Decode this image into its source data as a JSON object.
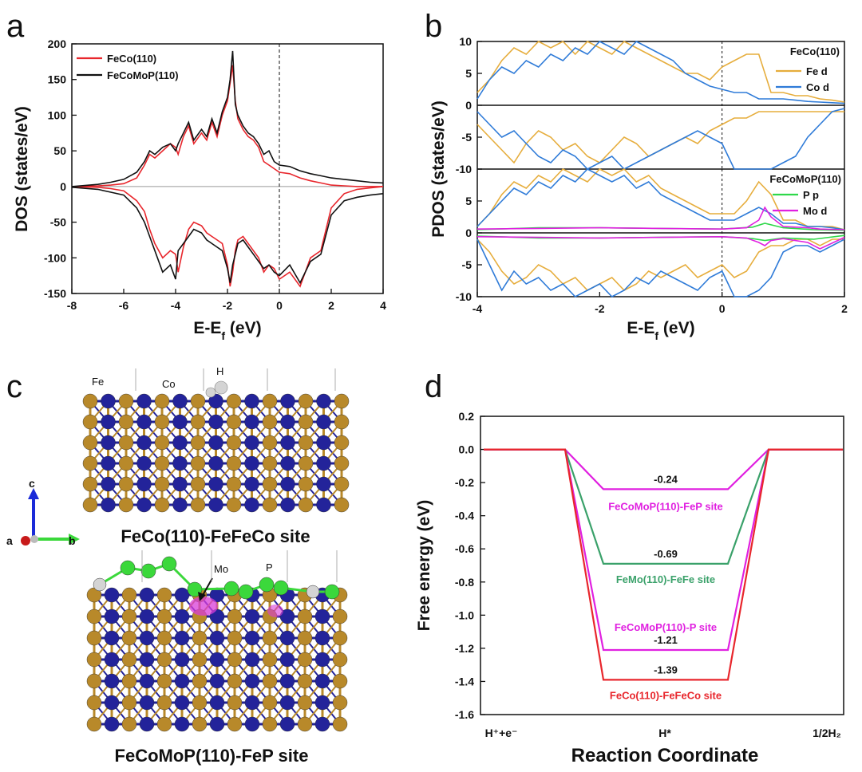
{
  "figure": {
    "panel_letters": [
      "a",
      "b",
      "c",
      "d"
    ]
  },
  "colors": {
    "red": "#e8262c",
    "black": "#111111",
    "fe_d": "#e6ad3c",
    "co_d": "#2f7bd8",
    "p_p": "#2fd84a",
    "mo_d": "#e020e0",
    "green_path": "#3aa16a",
    "fe_atom": "#b8892a",
    "co_atom": "#23239a",
    "p_atom": "#3bd83b",
    "h_atom": "#d4d4d4",
    "mo_atom": "#d83cd8"
  },
  "chart_data": [
    {
      "id": "a",
      "type": "line",
      "xlabel": "E-E",
      "xlabel_sub": "f",
      "xlabel_unit": " (eV)",
      "ylabel": "DOS (states/eV)",
      "xlim": [
        -8,
        4
      ],
      "ylim": [
        -150,
        200
      ],
      "xticks": [
        -8,
        -6,
        -4,
        -2,
        0,
        2,
        4
      ],
      "yticks": [
        -150,
        -100,
        -50,
        0,
        50,
        100,
        150,
        200
      ],
      "legend": [
        "FeCo(110)",
        "FeCoMoP(110)"
      ],
      "series": [
        {
          "name": "FeCo(110)",
          "x": [
            -8,
            -7,
            -6.5,
            -6,
            -5.5,
            -5.2,
            -5,
            -4.8,
            -4.5,
            -4.2,
            -4,
            -3.9,
            -3.7,
            -3.5,
            -3.3,
            -3,
            -2.8,
            -2.6,
            -2.4,
            -2.2,
            -2,
            -1.9,
            -1.8,
            -1.7,
            -1.6,
            -1.4,
            -1.2,
            -1,
            -0.8,
            -0.6,
            -0.4,
            -0.2,
            0,
            0.4,
            0.8,
            1.2,
            1.6,
            2,
            2.5,
            3,
            3.5,
            4
          ],
          "up": [
            0,
            1,
            2,
            4,
            12,
            30,
            45,
            40,
            50,
            60,
            55,
            45,
            70,
            85,
            60,
            75,
            65,
            90,
            70,
            100,
            120,
            145,
            170,
            120,
            95,
            80,
            70,
            65,
            55,
            35,
            30,
            25,
            20,
            18,
            12,
            8,
            5,
            2,
            1,
            0,
            0,
            0
          ],
          "dn": [
            0,
            -1,
            -3,
            -6,
            -20,
            -35,
            -60,
            -80,
            -100,
            -90,
            -95,
            -120,
            -85,
            -60,
            -50,
            -55,
            -65,
            -70,
            -75,
            -80,
            -110,
            -140,
            -120,
            -90,
            -75,
            -70,
            -80,
            -90,
            -100,
            -120,
            -110,
            -115,
            -130,
            -120,
            -140,
            -100,
            -90,
            -30,
            -10,
            -4,
            -2,
            0
          ]
        },
        {
          "name": "FeCoMoP(110)",
          "x": [
            -8,
            -7,
            -6.5,
            -6,
            -5.5,
            -5.2,
            -5,
            -4.8,
            -4.5,
            -4.2,
            -4,
            -3.9,
            -3.7,
            -3.5,
            -3.3,
            -3,
            -2.8,
            -2.6,
            -2.4,
            -2.2,
            -2,
            -1.9,
            -1.8,
            -1.7,
            -1.6,
            -1.4,
            -1.2,
            -1,
            -0.8,
            -0.6,
            -0.4,
            -0.2,
            0,
            0.4,
            0.8,
            1.2,
            1.6,
            2,
            2.5,
            3,
            3.5,
            4
          ],
          "up": [
            0,
            3,
            6,
            10,
            20,
            35,
            50,
            45,
            55,
            60,
            50,
            60,
            75,
            90,
            65,
            80,
            70,
            95,
            75,
            105,
            125,
            150,
            190,
            115,
            100,
            85,
            75,
            70,
            60,
            45,
            50,
            35,
            30,
            28,
            22,
            18,
            15,
            12,
            10,
            8,
            6,
            5
          ],
          "dn": [
            -1,
            -4,
            -8,
            -12,
            -30,
            -50,
            -70,
            -90,
            -120,
            -110,
            -130,
            -90,
            -80,
            -70,
            -60,
            -65,
            -75,
            -80,
            -85,
            -90,
            -115,
            -135,
            -110,
            -95,
            -80,
            -75,
            -85,
            -95,
            -105,
            -115,
            -110,
            -120,
            -125,
            -110,
            -135,
            -105,
            -95,
            -40,
            -20,
            -15,
            -12,
            -10
          ]
        }
      ]
    },
    {
      "id": "b",
      "type": "line",
      "xlabel": "E-E",
      "xlabel_sub": "f",
      "xlabel_unit": " (eV)",
      "ylabel": "PDOS (states/eV)",
      "xlim": [
        -4,
        2
      ],
      "xticks": [
        -4,
        -2,
        0,
        2
      ],
      "subplots": [
        {
          "label": "FeCo(110)",
          "ylim": [
            -10,
            10
          ],
          "yticks": [
            -10,
            -5,
            0,
            5,
            10
          ],
          "legend": [
            "Fe d",
            "Co d"
          ],
          "series": [
            {
              "name": "Fe d",
              "x": [
                -4,
                -3.8,
                -3.6,
                -3.4,
                -3.2,
                -3,
                -2.8,
                -2.6,
                -2.4,
                -2.2,
                -2,
                -1.8,
                -1.6,
                -1.4,
                -1.2,
                -1,
                -0.8,
                -0.6,
                -0.4,
                -0.2,
                0,
                0.2,
                0.4,
                0.6,
                0.8,
                1,
                1.2,
                1.4,
                1.6,
                1.8,
                2
              ],
              "up": [
                2,
                4,
                7,
                9,
                8,
                10,
                9,
                10,
                8,
                10,
                9,
                8,
                10,
                9,
                8,
                7,
                6,
                5,
                5,
                4,
                6,
                7,
                8,
                8,
                2,
                2,
                1.5,
                1.5,
                1,
                0.8,
                0.5
              ],
              "dn": [
                -3,
                -5,
                -7,
                -9,
                -6,
                -4,
                -5,
                -7,
                -6,
                -8,
                -9,
                -7,
                -5,
                -6,
                -8,
                -7,
                -6,
                -5,
                -6,
                -4,
                -3,
                -2,
                -2,
                -1,
                -1,
                -1,
                -1,
                -1,
                -1,
                -1,
                -1
              ]
            },
            {
              "name": "Co d",
              "x": [
                -4,
                -3.8,
                -3.6,
                -3.4,
                -3.2,
                -3,
                -2.8,
                -2.6,
                -2.4,
                -2.2,
                -2,
                -1.8,
                -1.6,
                -1.4,
                -1.2,
                -1,
                -0.8,
                -0.6,
                -0.4,
                -0.2,
                0,
                0.2,
                0.4,
                0.6,
                0.8,
                1,
                1.2,
                1.4,
                1.6,
                1.8,
                2
              ],
              "up": [
                1,
                4,
                6,
                5,
                7,
                6,
                8,
                7,
                9,
                8,
                10,
                9,
                8,
                10,
                9,
                8,
                7,
                5,
                4,
                3,
                2.5,
                2,
                2,
                1,
                1,
                1,
                0.8,
                0.6,
                0.5,
                0.4,
                0.3
              ],
              "dn": [
                -1,
                -3,
                -5,
                -4,
                -6,
                -8,
                -9,
                -7,
                -8,
                -10,
                -9,
                -8,
                -10,
                -9,
                -8,
                -7,
                -6,
                -5,
                -4,
                -5,
                -6,
                -10,
                -10,
                -10,
                -10,
                -9,
                -8,
                -5,
                -3,
                -1,
                -0.5
              ]
            }
          ]
        },
        {
          "label": "FeCoMoP(110)",
          "ylim": [
            -10,
            10
          ],
          "yticks": [
            -10,
            -5,
            0,
            5,
            10
          ],
          "legend": [
            "P p",
            "Mo d"
          ],
          "series": [
            {
              "name": "Fe d",
              "x": [
                -4,
                -3.8,
                -3.6,
                -3.4,
                -3.2,
                -3,
                -2.8,
                -2.6,
                -2.4,
                -2.2,
                -2,
                -1.8,
                -1.6,
                -1.4,
                -1.2,
                -1,
                -0.8,
                -0.6,
                -0.4,
                -0.2,
                0,
                0.2,
                0.4,
                0.6,
                0.8,
                1,
                1.2,
                1.4,
                1.6,
                1.8,
                2
              ],
              "up": [
                1,
                3,
                6,
                8,
                7,
                9,
                8,
                10,
                9,
                8,
                10,
                9,
                10,
                8,
                9,
                7,
                6,
                5,
                4,
                3,
                3,
                3,
                5,
                8,
                6,
                2,
                2,
                1,
                1,
                1,
                0.5
              ],
              "dn": [
                -1,
                -3,
                -6,
                -8,
                -7,
                -5,
                -6,
                -8,
                -7,
                -9,
                -8,
                -7,
                -9,
                -8,
                -6,
                -7,
                -6,
                -5,
                -7,
                -6,
                -5,
                -7,
                -6,
                -3,
                -2,
                -2,
                -1,
                -1,
                -2,
                -1,
                -1
              ]
            },
            {
              "name": "Co d",
              "x": [
                -4,
                -3.8,
                -3.6,
                -3.4,
                -3.2,
                -3,
                -2.8,
                -2.6,
                -2.4,
                -2.2,
                -2,
                -1.8,
                -1.6,
                -1.4,
                -1.2,
                -1,
                -0.8,
                -0.6,
                -0.4,
                -0.2,
                0,
                0.2,
                0.4,
                0.6,
                0.8,
                1,
                1.2,
                1.4,
                1.6,
                1.8,
                2
              ],
              "up": [
                1,
                3,
                5,
                7,
                6,
                8,
                7,
                9,
                8,
                10,
                9,
                8,
                9,
                7,
                8,
                6,
                5,
                4,
                3,
                2,
                2,
                2,
                3,
                4,
                3,
                1.5,
                1.5,
                1,
                1,
                0.8,
                0.5
              ],
              "dn": [
                -1,
                -5,
                -9,
                -6,
                -8,
                -7,
                -9,
                -8,
                -10,
                -9,
                -8,
                -10,
                -9,
                -7,
                -8,
                -6,
                -7,
                -8,
                -9,
                -7,
                -6,
                -10,
                -10,
                -9,
                -7,
                -3,
                -2,
                -2,
                -3,
                -2,
                -1
              ]
            },
            {
              "name": "P p",
              "x": [
                -4,
                -3,
                -2,
                -1,
                0,
                0.5,
                0.7,
                1,
                1.5,
                2
              ],
              "up": [
                0.5,
                0.8,
                0.8,
                0.7,
                0.6,
                0.9,
                1.5,
                0.8,
                0.5,
                0.4
              ],
              "dn": [
                -0.5,
                -0.8,
                -0.8,
                -0.7,
                -0.6,
                -0.9,
                -1.2,
                -0.8,
                -1.0,
                -0.4
              ]
            },
            {
              "name": "Mo d",
              "x": [
                -4,
                -3,
                -2,
                -1,
                0,
                0.4,
                0.6,
                0.7,
                0.8,
                1,
                1.4,
                1.6,
                2
              ],
              "up": [
                0.6,
                0.7,
                0.8,
                0.7,
                0.6,
                0.8,
                2,
                4,
                2.5,
                1,
                0.8,
                0.6,
                0.5
              ],
              "dn": [
                -0.6,
                -0.7,
                -0.8,
                -0.7,
                -0.6,
                -0.8,
                -1.5,
                -2,
                -1.2,
                -0.9,
                -1.5,
                -2.5,
                -0.7
              ]
            }
          ]
        }
      ]
    },
    {
      "id": "d",
      "type": "line",
      "title": "",
      "xlabel": "Reaction Coordinate",
      "ylabel": "Free energy (eV)",
      "ylim": [
        -1.6,
        0.2
      ],
      "yticks": [
        -1.6,
        -1.4,
        -1.2,
        -1.0,
        -0.8,
        -0.6,
        -0.4,
        -0.2,
        0.0,
        0.2
      ],
      "ytick_labels": [
        "-1.6",
        "-1.4",
        "-1.2",
        "-1.0",
        "-0.8",
        "-0.6",
        "-0.4",
        "-0.2",
        "0.0",
        "0.2"
      ],
      "xcategories": [
        "H⁺+e⁻",
        "H*",
        "1/2H₂"
      ],
      "series": [
        {
          "name": "FeCoMoP(110)-FeP site",
          "value": -0.24,
          "value_label": "-0.24"
        },
        {
          "name": "FeMo(110)-FeFe site",
          "value": -0.69,
          "value_label": "-0.69"
        },
        {
          "name": "FeCoMoP(110)-P site",
          "value": -1.21,
          "value_label": "-1.21"
        },
        {
          "name": "FeCo(110)-FeFeCo site",
          "value": -1.39,
          "value_label": "-1.39"
        }
      ]
    }
  ],
  "panel_c": {
    "top_title": "FeCo(110)-FeFeCo site",
    "bottom_title": "FeCoMoP(110)-FeP site",
    "top_labels": {
      "fe": "Fe",
      "co": "Co",
      "h": "H"
    },
    "bottom_labels": {
      "mo": "Mo",
      "p": "P"
    },
    "axes": {
      "a": "a",
      "b": "b",
      "c": "c"
    }
  }
}
